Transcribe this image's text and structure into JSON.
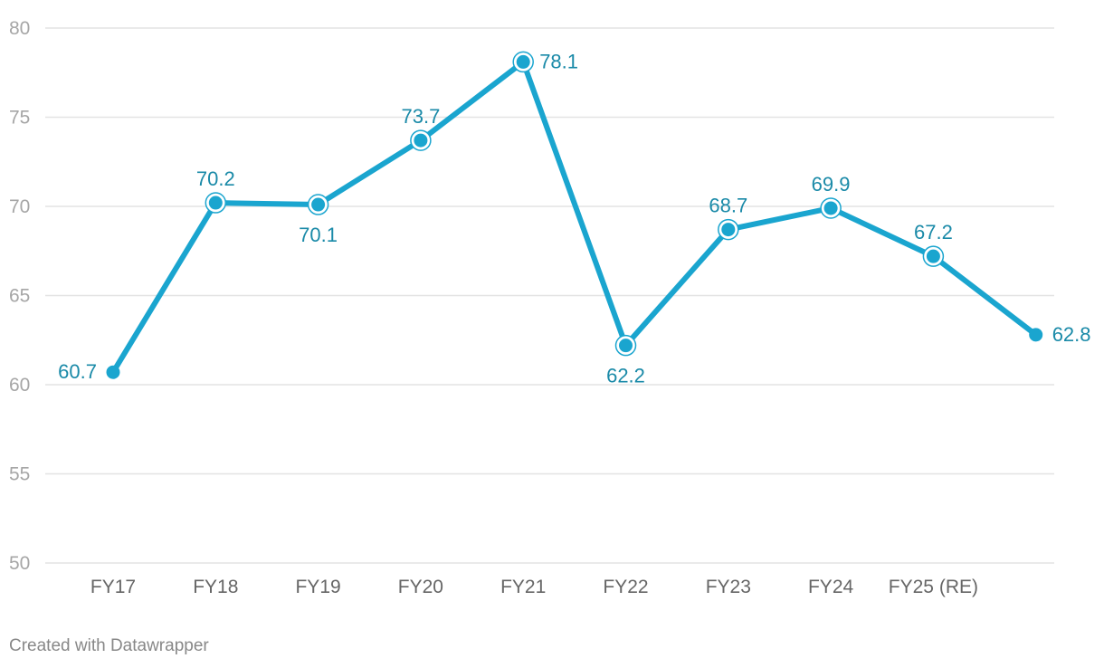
{
  "chart_data": {
    "type": "line",
    "title": "",
    "xlabel": "",
    "ylabel": "",
    "ylim": [
      50,
      80
    ],
    "yticks": [
      "50",
      "55",
      "60",
      "65",
      "70",
      "75",
      "80"
    ],
    "grid": true,
    "categories": [
      "FY17",
      "FY18",
      "FY19",
      "FY20",
      "FY21",
      "FY22",
      "FY23",
      "FY24",
      "FY25 (RE)",
      ""
    ],
    "series": [
      {
        "name": "Series 1",
        "color": "#1aa5cf",
        "values": [
          60.7,
          70.2,
          70.1,
          73.7,
          78.1,
          62.2,
          68.7,
          69.9,
          67.2,
          62.8
        ],
        "labels": [
          "60.7",
          "70.2",
          "70.1",
          "73.7",
          "78.1",
          "62.2",
          "68.7",
          "69.9",
          "67.2",
          "62.8"
        ]
      }
    ]
  },
  "footer": {
    "credit": "Created with Datawrapper"
  },
  "colors": {
    "line": "#1aa5cf",
    "label": "#1a8aa8",
    "grid": "#e3e3e3"
  }
}
